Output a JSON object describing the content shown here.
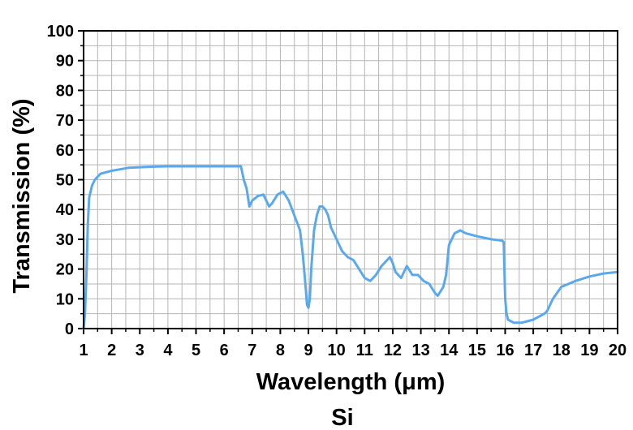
{
  "chart_data": {
    "type": "line",
    "title": "",
    "xlabel": "Wavelength (μm)",
    "ylabel": "Transmission (%)",
    "sample_label": "Si",
    "xlim": [
      1,
      20
    ],
    "ylim": [
      0,
      100
    ],
    "x_ticks": [
      1,
      2,
      3,
      4,
      5,
      6,
      7,
      8,
      9,
      10,
      11,
      12,
      13,
      14,
      15,
      16,
      17,
      18,
      19,
      20
    ],
    "y_ticks": [
      0,
      10,
      20,
      30,
      40,
      50,
      60,
      70,
      80,
      90,
      100
    ],
    "grid": true,
    "line_color": "#5aa9ec",
    "series": [
      {
        "x": [
          1.0,
          1.05,
          1.1,
          1.15,
          1.2,
          1.3,
          1.4,
          1.6,
          1.8,
          2.0,
          2.3,
          2.6,
          3.0,
          3.5,
          4.0,
          4.5,
          5.0,
          5.5,
          6.0,
          6.5,
          6.6,
          6.7,
          6.8,
          6.9,
          7.0,
          7.2,
          7.4,
          7.6,
          7.7,
          7.9,
          8.1,
          8.3,
          8.5,
          8.7,
          8.8,
          8.9,
          8.95,
          9.0,
          9.05,
          9.1,
          9.2,
          9.3,
          9.4,
          9.5,
          9.6,
          9.7,
          9.8,
          10.0,
          10.2,
          10.4,
          10.6,
          10.8,
          11.0,
          11.2,
          11.4,
          11.6,
          11.8,
          11.9,
          12.0,
          12.1,
          12.3,
          12.5,
          12.7,
          12.9,
          13.1,
          13.3,
          13.5,
          13.6,
          13.8,
          13.9,
          14.0,
          14.2,
          14.4,
          14.6,
          15.0,
          15.5,
          15.9,
          15.95,
          16.0,
          16.05,
          16.1,
          16.3,
          16.6,
          17.0,
          17.4,
          17.5,
          17.7,
          18.0,
          18.5,
          19.0,
          19.5,
          20.0
        ],
        "y": [
          0,
          5,
          18,
          35,
          44,
          48,
          50,
          52,
          52.5,
          53,
          53.5,
          54,
          54.2,
          54.4,
          54.5,
          54.5,
          54.5,
          54.5,
          54.5,
          54.5,
          54.5,
          50,
          47,
          41,
          43,
          44.5,
          45,
          41,
          42,
          45,
          46,
          43,
          38,
          33,
          25,
          14,
          8,
          7,
          10,
          20,
          33,
          38,
          41,
          41,
          40,
          38,
          34,
          30,
          26,
          24,
          23,
          20,
          17,
          16,
          18,
          21,
          23,
          24,
          22,
          19,
          17,
          21,
          18,
          18,
          16,
          15,
          12,
          11,
          14,
          18,
          28,
          32,
          33,
          32,
          31,
          30,
          29.5,
          29,
          10,
          5,
          3,
          2,
          2,
          3,
          5,
          6,
          10,
          14,
          16,
          17.5,
          18.5,
          19
        ]
      }
    ]
  }
}
